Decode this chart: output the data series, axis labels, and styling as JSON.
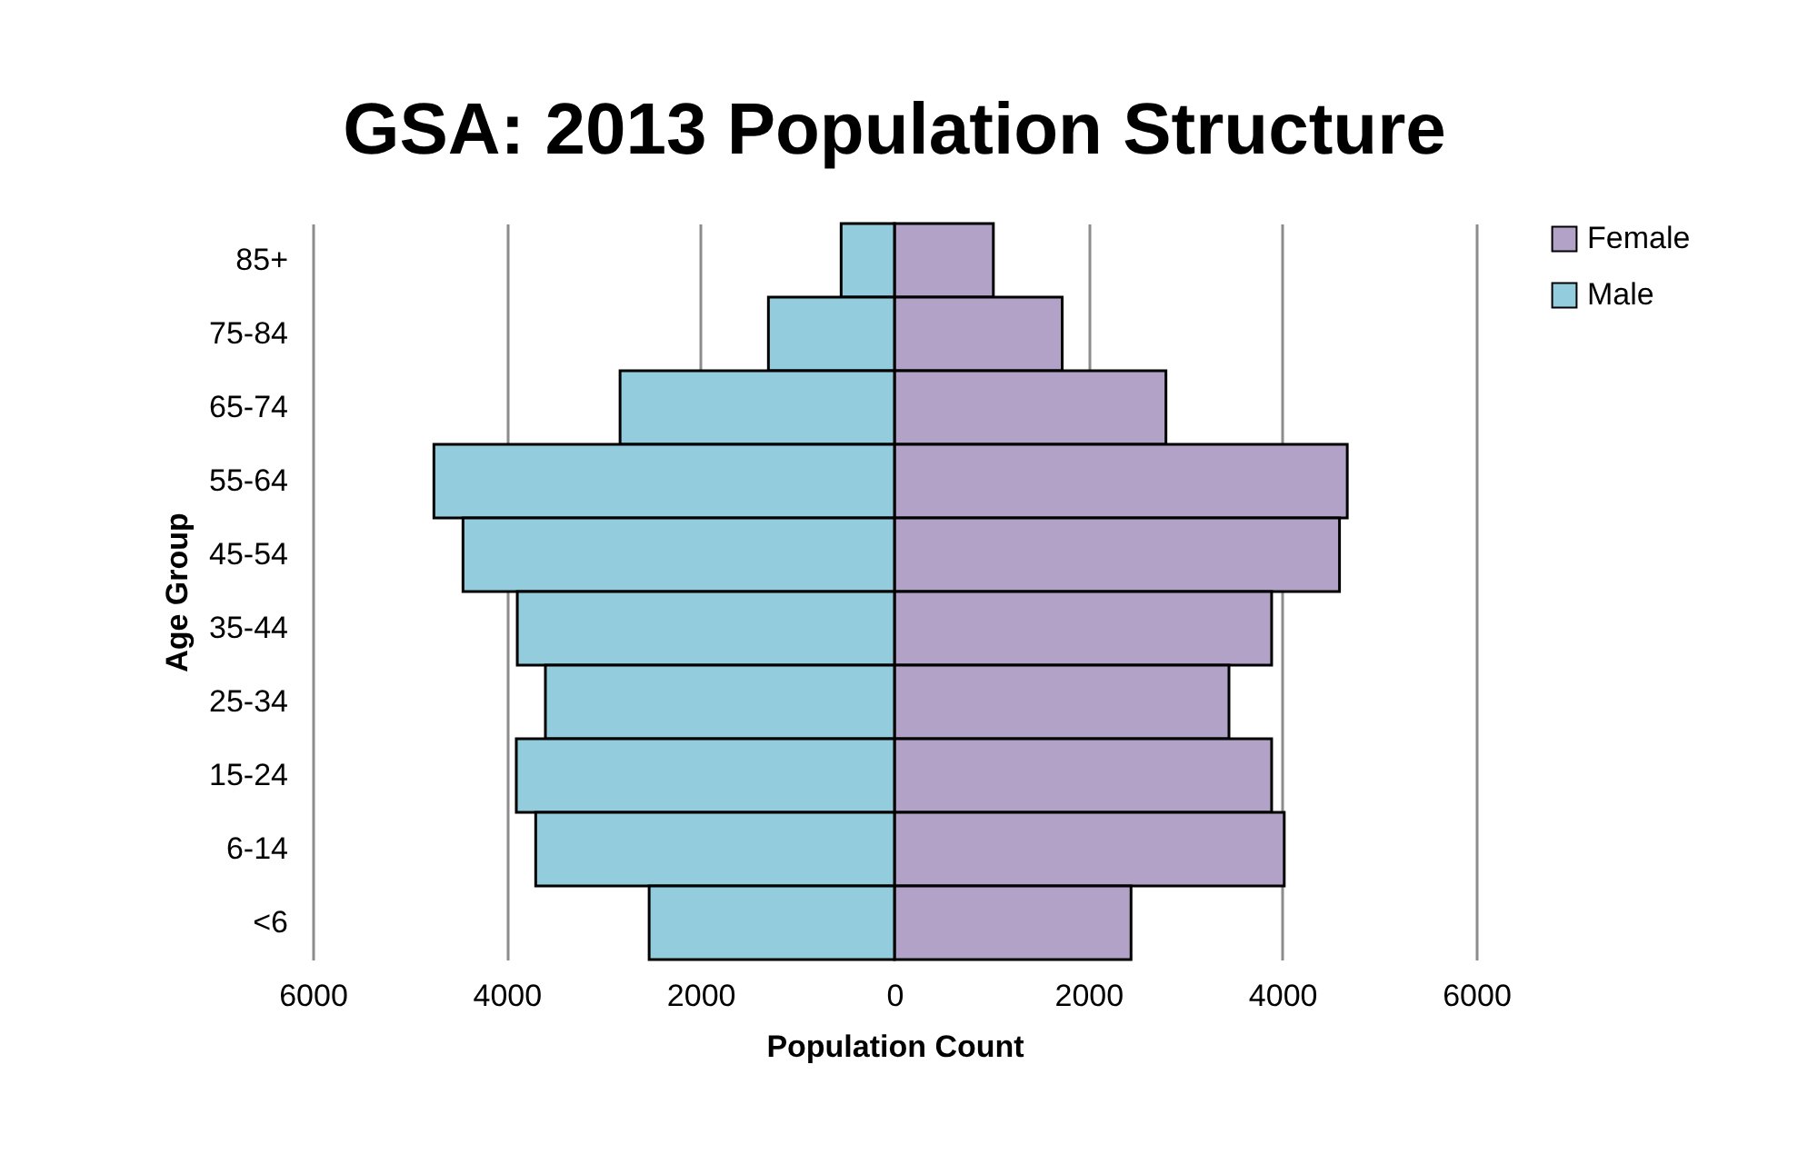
{
  "chart_data": {
    "type": "bar",
    "orientation": "horizontal",
    "stacked": true,
    "title": "GSA: 2013 Population Structure",
    "xlabel": "Population Count",
    "ylabel": "Age Group",
    "categories": [
      "85+",
      "75-84",
      "65-74",
      "55-64",
      "45-54",
      "35-44",
      "25-34",
      "15-24",
      "6-14",
      "<6"
    ],
    "series": [
      {
        "name": "Female",
        "color": "#b3a2c7",
        "values": [
          1020,
          1730,
          2800,
          4670,
          4590,
          3890,
          3450,
          3890,
          4020,
          2440
        ]
      },
      {
        "name": "Male",
        "color": "#93cddd",
        "values": [
          -550,
          -1300,
          -2830,
          -4750,
          -4450,
          -3890,
          -3600,
          -3900,
          -3700,
          -2530
        ]
      }
    ],
    "xlim": [
      -6000,
      6000
    ],
    "xticks": [
      {
        "value": -6000,
        "label": "6000"
      },
      {
        "value": -4000,
        "label": "4000"
      },
      {
        "value": -2000,
        "label": "2000"
      },
      0,
      2000,
      4000,
      6000
    ],
    "grid": "x",
    "legend": "right"
  }
}
